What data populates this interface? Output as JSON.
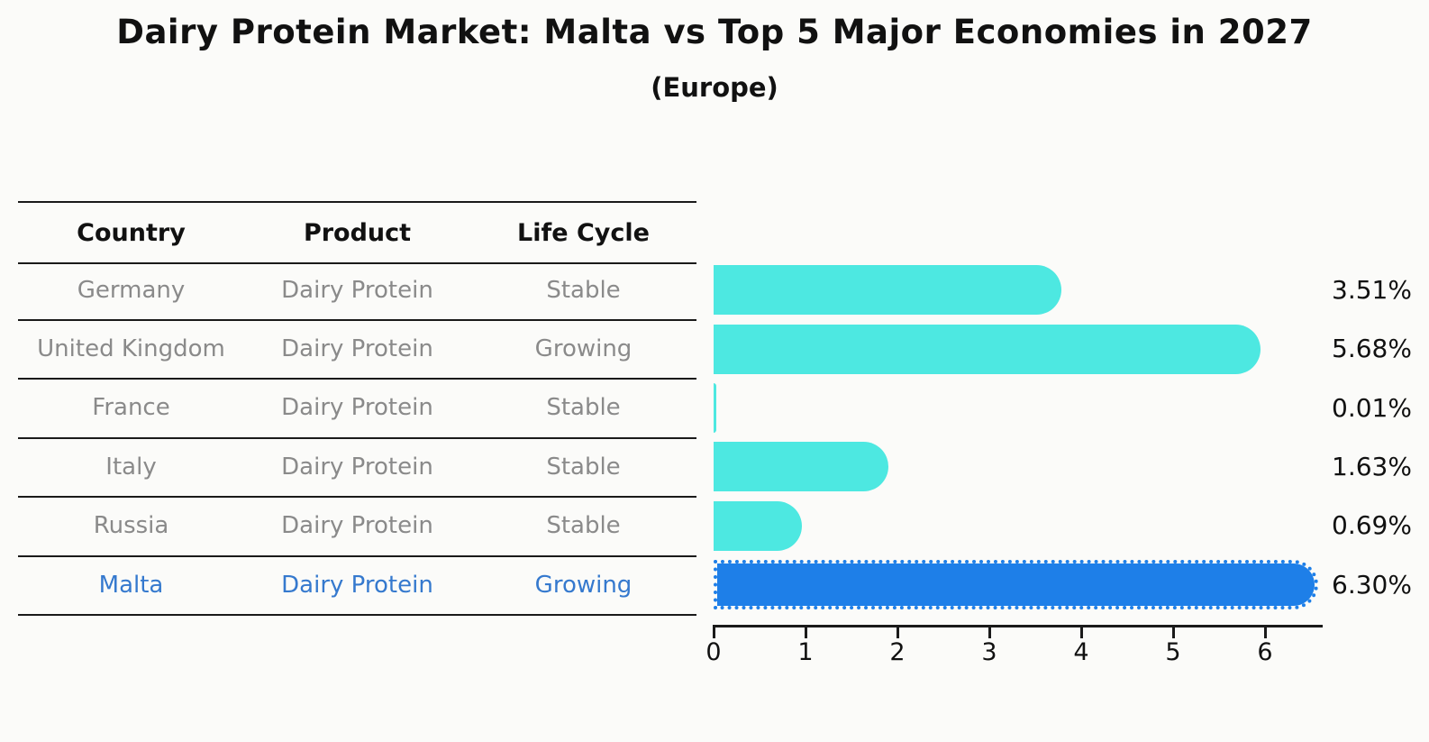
{
  "title": "Dairy Protein Market: Malta vs Top 5 Major Economies in 2027",
  "subtitle": "(Europe)",
  "table": {
    "headers": [
      "Country",
      "Product",
      "Life Cycle"
    ],
    "rows": [
      {
        "country": "Germany",
        "product": "Dairy Protein",
        "life_cycle": "Stable",
        "highlight": false
      },
      {
        "country": "United Kingdom",
        "product": "Dairy Protein",
        "life_cycle": "Growing",
        "highlight": false
      },
      {
        "country": "France",
        "product": "Dairy Protein",
        "life_cycle": "Stable",
        "highlight": false
      },
      {
        "country": "Italy",
        "product": "Dairy Protein",
        "life_cycle": "Stable",
        "highlight": false
      },
      {
        "country": "Russia",
        "product": "Dairy Protein",
        "life_cycle": "Stable",
        "highlight": false
      },
      {
        "country": "Malta",
        "product": "Dairy Protein",
        "life_cycle": "Growing",
        "highlight": true
      }
    ]
  },
  "chart_data": {
    "type": "bar",
    "orientation": "horizontal",
    "title": "Dairy Protein Market: Malta vs Top 5 Major Economies in 2027",
    "subtitle": "(Europe)",
    "categories": [
      "Germany",
      "United Kingdom",
      "France",
      "Italy",
      "Russia",
      "Malta"
    ],
    "values": [
      3.51,
      5.68,
      0.01,
      1.63,
      0.69,
      6.3
    ],
    "value_labels": [
      "3.51%",
      "5.68%",
      "0.01%",
      "1.63%",
      "0.69%",
      "6.30%"
    ],
    "xlabel": "",
    "ylabel": "",
    "xticks": [
      0,
      1,
      2,
      3,
      4,
      5,
      6
    ],
    "xlim": [
      0,
      6.63
    ],
    "grid": false,
    "legend": null,
    "bar_color": "#4de8e1",
    "highlight_index": 5,
    "highlight_bar_color": "#1e7fe8",
    "highlight_edge_style": "dotted",
    "highlight_text_color": "#3579ce",
    "row_text_color": "#8a8a8a",
    "axis_color": "#1a1a1a"
  }
}
